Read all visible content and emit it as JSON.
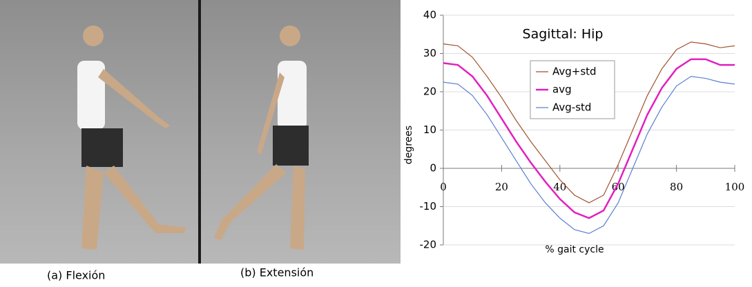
{
  "captions": [
    "(a)  Flexión",
    "(b) Extensión"
  ],
  "chart_data": {
    "type": "line",
    "title": "Sagittal: Hip",
    "xlabel": "% gait cycle",
    "ylabel": "degrees",
    "x": [
      0,
      5,
      10,
      15,
      20,
      25,
      30,
      35,
      40,
      45,
      50,
      55,
      60,
      65,
      70,
      75,
      80,
      85,
      90,
      95,
      100
    ],
    "series": [
      {
        "name": "Avg+std",
        "color": "#a0522d",
        "values": [
          32.5,
          32,
          29,
          24,
          18.5,
          12.5,
          7,
          2,
          -3,
          -7,
          -9,
          -7,
          1,
          10,
          19,
          26,
          31,
          33,
          32.5,
          31.5,
          32
        ]
      },
      {
        "name": "avg",
        "color": "#e020c0",
        "values": [
          27.5,
          27,
          24,
          19,
          13,
          7,
          1.5,
          -3.5,
          -8,
          -11.5,
          -13,
          -11,
          -4,
          5,
          14,
          21,
          26,
          28.5,
          28.5,
          27,
          27
        ]
      },
      {
        "name": "Avg-std",
        "color": "#5a7fd0",
        "values": [
          22.5,
          22,
          19,
          14,
          8,
          2,
          -4,
          -9,
          -13,
          -16,
          -17,
          -15,
          -9,
          0,
          9,
          16,
          21.5,
          24,
          23.5,
          22.5,
          22
        ]
      }
    ],
    "xlim": [
      0,
      100
    ],
    "xticks": [
      0,
      20,
      40,
      60,
      80,
      100
    ],
    "ylim": [
      -20,
      40
    ],
    "yticks": [
      -20,
      -10,
      0,
      10,
      20,
      30,
      40
    ],
    "grid": true
  }
}
